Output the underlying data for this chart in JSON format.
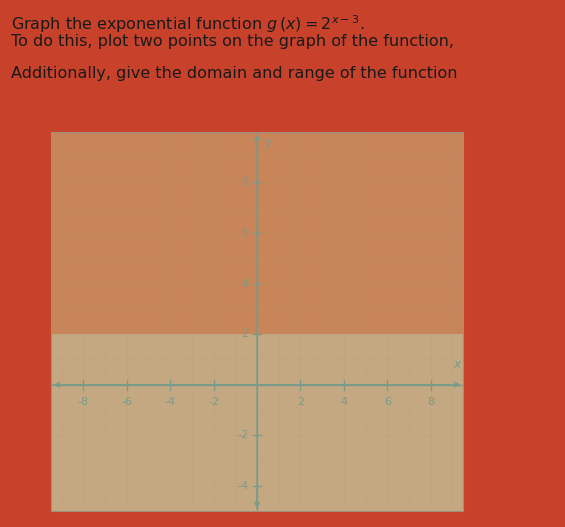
{
  "bg_color": "#c8412a",
  "plot_bg_upper": "#c8855a",
  "plot_bg_lower": "#c4a882",
  "grid_dot_color": "#b09878",
  "axis_color": "#7a9a8a",
  "tick_label_color": "#7a9a8a",
  "text_color": "#1a1a1a",
  "border_color": "#a09080",
  "xlim": [
    -9.5,
    9.5
  ],
  "ylim": [
    -5,
    10
  ],
  "xticks": [
    -8,
    -6,
    -4,
    -2,
    2,
    4,
    6,
    8
  ],
  "yticks": [
    -4,
    -2,
    2,
    4,
    6,
    8
  ],
  "title_line1": "Graph the exponential function $g\\,(x) = 2^{x-3}$.",
  "title_line2": "To do this, plot two points on the graph of the function,",
  "title_line3": "Additionally, give the domain and range of the function"
}
